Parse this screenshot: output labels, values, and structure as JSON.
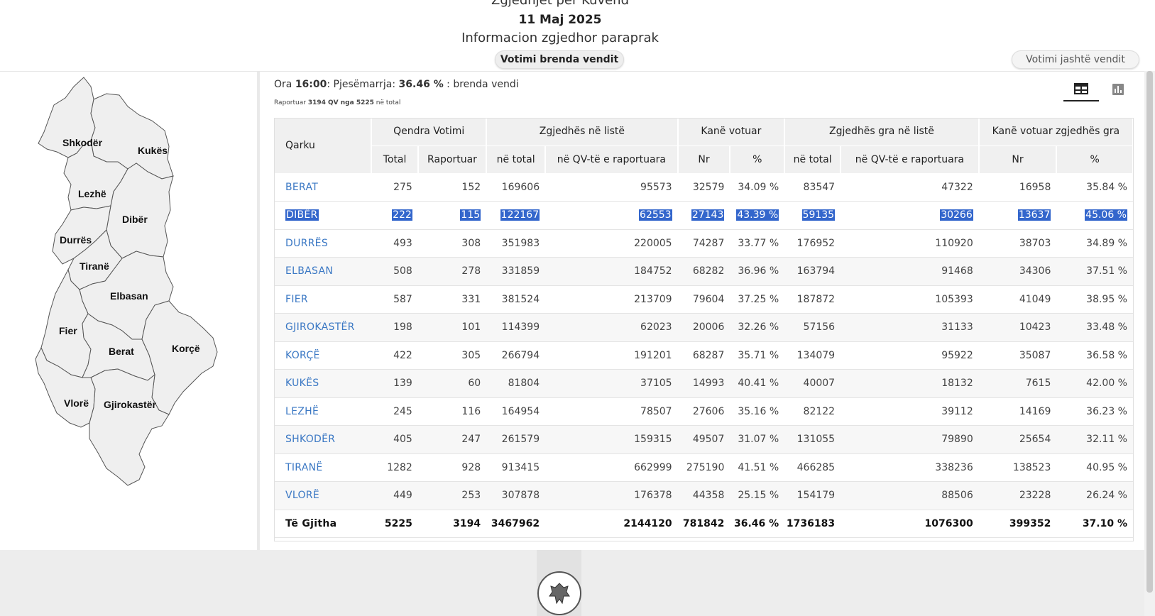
{
  "header": {
    "title": "Zgjedhjet për Kuvend",
    "date": "11 Maj 2025",
    "subtitle": "Informacion zgjedhor paraprak",
    "btn_inside": "Votimi brenda vendit",
    "btn_outside": "Votimi jashtë vendit"
  },
  "status": {
    "ora_label": "Ora",
    "time": "16:00",
    "turnout_label": ": Pjesëmarrja:",
    "turnout_value": "36.46 %",
    "scope": ": brenda vendi",
    "reported_prefix": "Raportuar",
    "reported_value": "3194 QV nga 5225",
    "reported_suffix": "në total"
  },
  "view_icons": [
    "table-icon",
    "bar-chart-icon"
  ],
  "map": {
    "labels": [
      "Shkodër",
      "Kukës",
      "Lezhë",
      "Dibër",
      "Durrës",
      "Tiranë",
      "Elbasan",
      "Fier",
      "Berat",
      "Korçë",
      "Vlorë",
      "Gjirokastër"
    ]
  },
  "table": {
    "group_headers": {
      "qarku": "Qarku",
      "qendra": "Qendra Votimi",
      "zgjedhes": "Zgjedhës në listë",
      "kane_votuar": "Kanë votuar",
      "zgjedhes_gra": "Zgjedhës gra në listë",
      "kane_votuar_gra": "Kanë votuar zgjedhës gra"
    },
    "sub_headers": [
      "Total",
      "Raportuar",
      "në total",
      "në QV-të e raportuara",
      "Nr",
      "%",
      "në total",
      "në QV-të e raportuara",
      "Nr",
      "%"
    ],
    "rows": [
      [
        "BERAT",
        "275",
        "152",
        "169606",
        "95573",
        "32579",
        "34.09 %",
        "83547",
        "47322",
        "16958",
        "35.84 %"
      ],
      [
        "DIBËR",
        "222",
        "115",
        "122167",
        "62553",
        "27143",
        "43.39 %",
        "59135",
        "30266",
        "13637",
        "45.06 %"
      ],
      [
        "DURRËS",
        "493",
        "308",
        "351983",
        "220005",
        "74287",
        "33.77 %",
        "176952",
        "110920",
        "38703",
        "34.89 %"
      ],
      [
        "ELBASAN",
        "508",
        "278",
        "331859",
        "184752",
        "68282",
        "36.96 %",
        "163794",
        "91468",
        "34306",
        "37.51 %"
      ],
      [
        "FIER",
        "587",
        "331",
        "381524",
        "213709",
        "79604",
        "37.25 %",
        "187872",
        "105393",
        "41049",
        "38.95 %"
      ],
      [
        "GJIROKASTËR",
        "198",
        "101",
        "114399",
        "62023",
        "20006",
        "32.26 %",
        "57156",
        "31133",
        "10423",
        "33.48 %"
      ],
      [
        "KORÇË",
        "422",
        "305",
        "266794",
        "191201",
        "68287",
        "35.71 %",
        "134079",
        "95922",
        "35087",
        "36.58 %"
      ],
      [
        "KUKËS",
        "139",
        "60",
        "81804",
        "37105",
        "14993",
        "40.41 %",
        "40007",
        "18132",
        "7615",
        "42.00 %"
      ],
      [
        "LEZHË",
        "245",
        "116",
        "164954",
        "78507",
        "27606",
        "35.16 %",
        "82122",
        "39112",
        "14169",
        "36.23 %"
      ],
      [
        "SHKODËR",
        "405",
        "247",
        "261579",
        "159315",
        "49507",
        "31.07 %",
        "131055",
        "79890",
        "25654",
        "32.11 %"
      ],
      [
        "TIRANË",
        "1282",
        "928",
        "913415",
        "662999",
        "275190",
        "41.51 %",
        "466285",
        "338236",
        "138523",
        "40.95 %"
      ],
      [
        "VLORË",
        "449",
        "253",
        "307878",
        "176378",
        "44358",
        "25.15 %",
        "154179",
        "88506",
        "23228",
        "26.24 %"
      ]
    ],
    "selected_row": 1,
    "total": [
      "Të Gjitha",
      "5225",
      "3194",
      "3467962",
      "2144120",
      "781842",
      "36.46 %",
      "1736183",
      "1076300",
      "399352",
      "37.10 %"
    ]
  },
  "colors": {
    "link": "#3b78c4",
    "selection": "#3366cc",
    "header_bg": "#f0f0f0"
  }
}
